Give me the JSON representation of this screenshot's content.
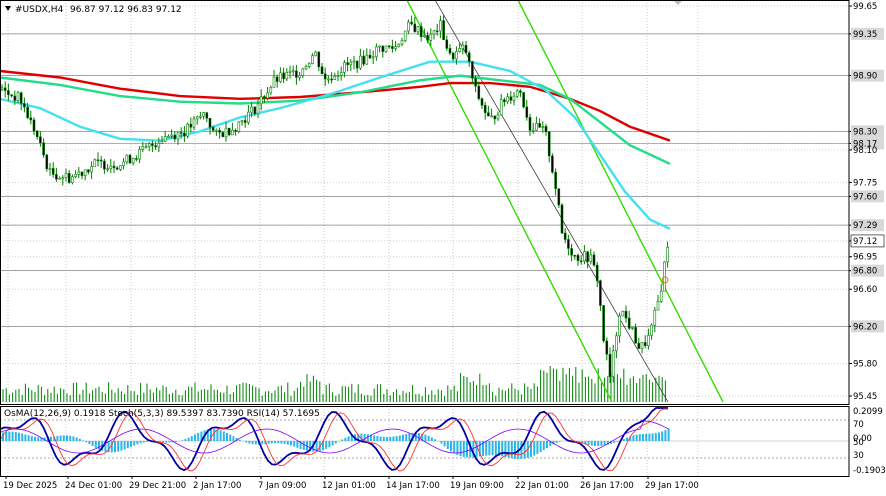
{
  "header": {
    "symbol": "#USDX,H4",
    "ohlc": "96.87 97.12 96.83 97.12"
  },
  "price_axis": {
    "labels": [
      "99.65",
      "99.35",
      "98.90",
      "98.30",
      "98.17",
      "98.10",
      "97.75",
      "97.60",
      "97.29",
      "97.12",
      "96.95",
      "96.80",
      "96.60",
      "96.20",
      "95.80",
      "95.45"
    ],
    "boxed": [
      "99.35",
      "98.90",
      "98.30",
      "98.17",
      "97.60",
      "97.29",
      "97.12",
      "96.80",
      "96.20"
    ],
    "current": "97.12"
  },
  "indicator": {
    "caption": "OsMA(12,26,9) 0.1918  Stoch(5,3,3) 89.5397 83.7390  RSI(14) 57.1695",
    "labels": [
      "0.2099",
      "70",
      "0.00",
      "50",
      "30",
      "-0.1903"
    ]
  },
  "time_axis": [
    "19 Dec 2025",
    "24 Dec 01:00",
    "29 Dec 21:00",
    "2 Jan 17:00",
    "7 Jan 09:00",
    "12 Jan 01:00",
    "14 Jan 17:00",
    "19 Jan 09:00",
    "22 Jan 01:00",
    "26 Jan 17:00",
    "29 Jan 17:00"
  ],
  "colors": {
    "ma_red": "#e00000",
    "ma_green": "#22dd88",
    "ma_cyan": "#44e0f0",
    "channel": "#33dd00",
    "candle": "#008000",
    "osma": "#2ab7e8",
    "stoch_main": "#0000a0",
    "stoch_signal": "#ff3333",
    "rsi": "#7b00ff"
  },
  "icons": [
    "dropdown-triangle-icon",
    "scroll-marker-icon"
  ]
}
